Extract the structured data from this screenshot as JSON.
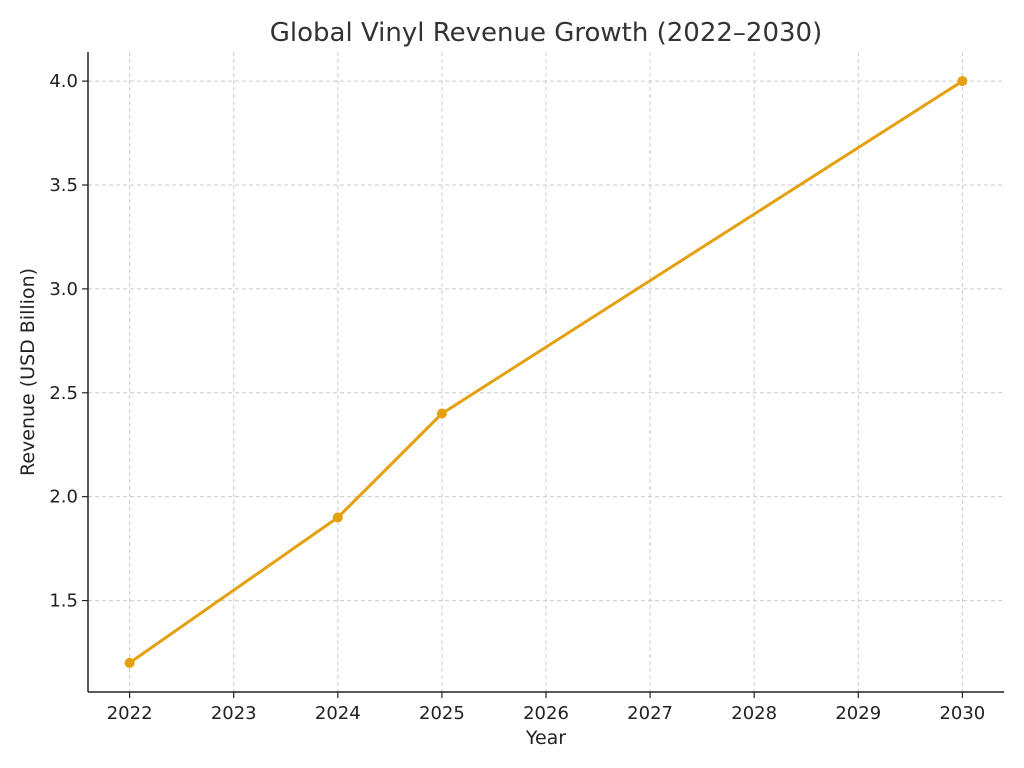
{
  "chart_data": {
    "type": "line",
    "title": "Global Vinyl Revenue Growth (2022–2030)",
    "xlabel": "Year",
    "ylabel": "Revenue (USD Billion)",
    "x_ticks": [
      2022,
      2023,
      2024,
      2025,
      2026,
      2027,
      2028,
      2029,
      2030
    ],
    "y_ticks": [
      "1.5",
      "2.0",
      "2.5",
      "3.0",
      "3.5",
      "4.0"
    ],
    "xlim": [
      2021.6,
      2030.4
    ],
    "ylim": [
      1.06,
      4.14
    ],
    "grid": true,
    "series": [
      {
        "color": "#e5a00d",
        "x": [
          2022,
          2024,
          2025,
          2030
        ],
        "values": [
          1.2,
          1.9,
          2.4,
          4.0
        ]
      }
    ]
  }
}
